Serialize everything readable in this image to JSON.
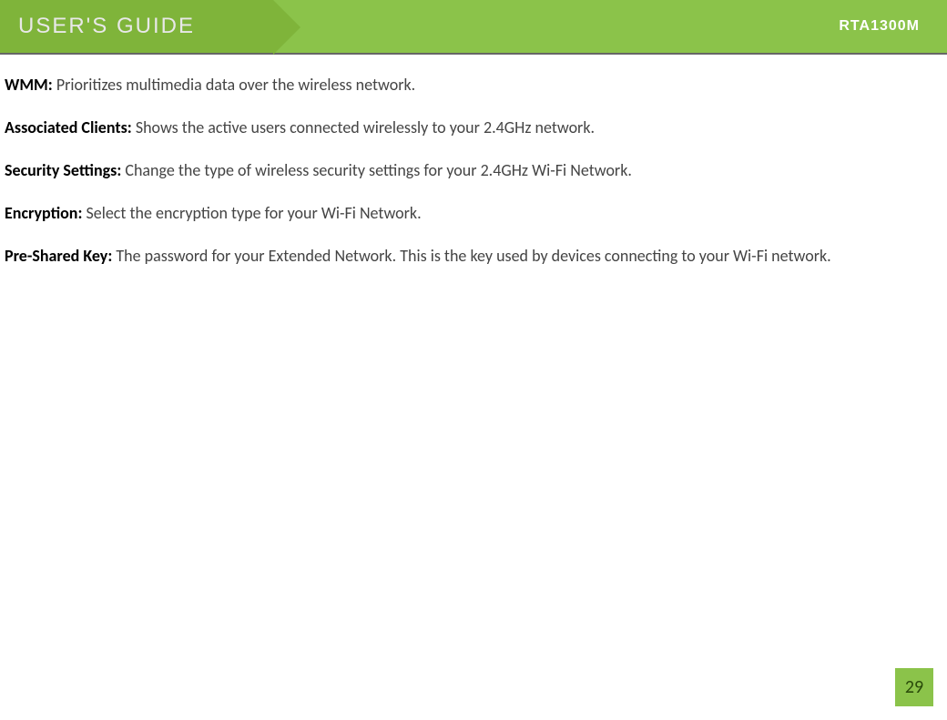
{
  "header": {
    "title": "USER'S GUIDE",
    "model": "RTA1300M",
    "left_bg_color": "#7fb43a",
    "right_bg_color": "#8bc34a",
    "title_color": "#e8e8e8",
    "model_color": "#ffffff",
    "border_color": "#666666"
  },
  "definitions": [
    {
      "term": "WMM:",
      "text": " Prioritizes multimedia data over the wireless network."
    },
    {
      "term": "Associated Clients:",
      "text": " Shows the active users connected wirelessly to your 2.4GHz network."
    },
    {
      "term": "Security Settings:",
      "text": " Change the type of wireless security settings for your 2.4GHz Wi-Fi Network."
    },
    {
      "term": "Encryption:",
      "text": " Select the encryption type for your Wi-Fi Network."
    },
    {
      "term": "Pre-Shared Key:",
      "text": " The password for your Extended Network.  This is the key used by devices connecting to your Wi-Fi network."
    }
  ],
  "page_number": "29",
  "page_number_style": {
    "bg_color": "#8bc34a",
    "text_color": "#2a4b0a"
  },
  "typography": {
    "body_font": "Calibri",
    "body_fontsize": 18,
    "term_weight": "bold",
    "text_color": "#444444",
    "term_color": "#000000"
  }
}
